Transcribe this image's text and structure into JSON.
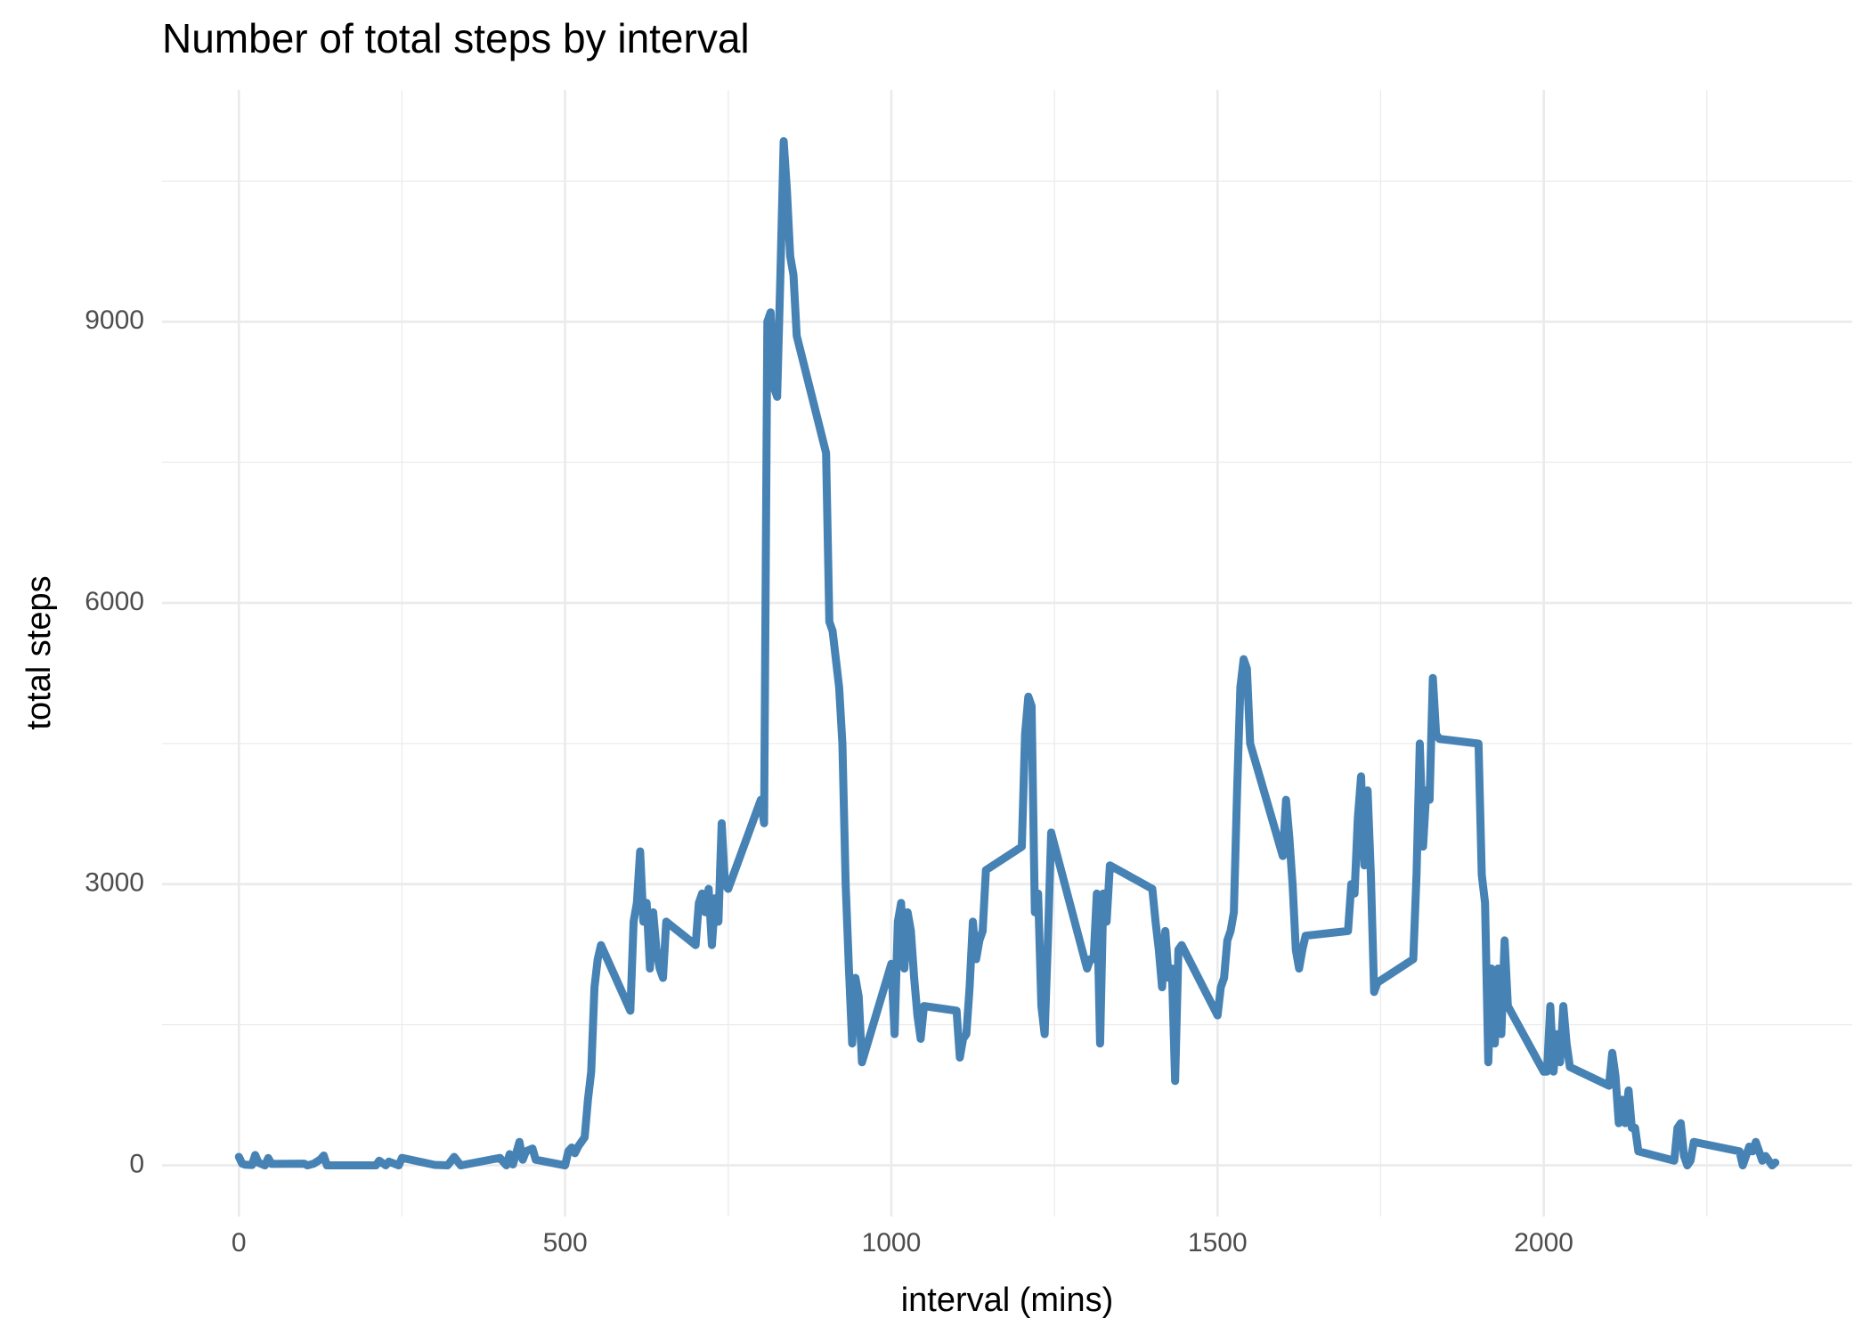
{
  "chart_data": {
    "type": "line",
    "title": "Number of total steps by interval",
    "x_label": "interval (mins)",
    "y_label": "total steps",
    "xlim": [
      -117.75,
      2472.75
    ],
    "ylim": [
      -546,
      11473
    ],
    "xticks": [
      0,
      500,
      1000,
      1500,
      2000
    ],
    "yticks": [
      0,
      3000,
      6000,
      9000
    ],
    "x_minor_grid": [
      250,
      750,
      1250,
      1750,
      2250
    ],
    "y_minor_grid": [
      1500,
      4500,
      7500,
      10500
    ],
    "grid": true,
    "x": [
      0,
      5,
      10,
      20,
      25,
      30,
      40,
      45,
      50,
      100,
      105,
      115,
      125,
      130,
      135,
      200,
      210,
      215,
      225,
      230,
      245,
      250,
      300,
      320,
      330,
      340,
      400,
      410,
      415,
      420,
      430,
      435,
      440,
      450,
      455,
      500,
      505,
      510,
      515,
      520,
      530,
      535,
      540,
      545,
      550,
      555,
      600,
      605,
      610,
      615,
      620,
      625,
      630,
      635,
      640,
      645,
      650,
      655,
      700,
      705,
      710,
      715,
      720,
      725,
      730,
      735,
      740,
      745,
      750,
      800,
      805,
      810,
      815,
      820,
      825,
      830,
      835,
      840,
      845,
      850,
      855,
      900,
      905,
      910,
      915,
      920,
      925,
      930,
      935,
      940,
      945,
      950,
      955,
      1000,
      1005,
      1010,
      1015,
      1020,
      1025,
      1030,
      1035,
      1040,
      1045,
      1050,
      1100,
      1105,
      1110,
      1115,
      1120,
      1125,
      1130,
      1135,
      1140,
      1145,
      1200,
      1205,
      1210,
      1215,
      1220,
      1225,
      1230,
      1235,
      1240,
      1245,
      1300,
      1305,
      1310,
      1315,
      1320,
      1325,
      1330,
      1335,
      1400,
      1405,
      1410,
      1415,
      1420,
      1425,
      1430,
      1435,
      1440,
      1445,
      1500,
      1505,
      1510,
      1515,
      1520,
      1525,
      1530,
      1535,
      1540,
      1545,
      1550,
      1600,
      1605,
      1610,
      1615,
      1620,
      1625,
      1630,
      1635,
      1700,
      1705,
      1710,
      1715,
      1720,
      1725,
      1730,
      1735,
      1740,
      1745,
      1800,
      1805,
      1810,
      1815,
      1820,
      1825,
      1830,
      1835,
      1840,
      1900,
      1905,
      1910,
      1915,
      1920,
      1925,
      1930,
      1935,
      1940,
      1945,
      2000,
      2005,
      2010,
      2015,
      2020,
      2025,
      2030,
      2035,
      2040,
      2100,
      2105,
      2110,
      2115,
      2120,
      2125,
      2130,
      2135,
      2140,
      2145,
      2200,
      2205,
      2210,
      2215,
      2220,
      2225,
      2230,
      2300,
      2305,
      2310,
      2315,
      2320,
      2325,
      2330,
      2335,
      2340,
      2345,
      2350,
      2355
    ],
    "series": [
      {
        "name": "total steps",
        "color": "#4682b4",
        "values": [
          91,
          18,
          7,
          4,
          111,
          28,
          0,
          78,
          16,
          18,
          0,
          19,
          64,
          105,
          0,
          0,
          0,
          50,
          0,
          40,
          0,
          80,
          5,
          0,
          90,
          0,
          80,
          0,
          120,
          10,
          250,
          60,
          150,
          180,
          60,
          0,
          150,
          190,
          130,
          200,
          300,
          700,
          1000,
          1900,
          2200,
          2350,
          1650,
          2600,
          2800,
          3350,
          2600,
          2800,
          2100,
          2700,
          2300,
          2100,
          2000,
          2600,
          2350,
          2800,
          2900,
          2700,
          2950,
          2350,
          2850,
          2600,
          3650,
          3000,
          2950,
          3900,
          3650,
          9000,
          9100,
          8300,
          8200,
          9500,
          10927,
          10400,
          9700,
          9500,
          8850,
          7600,
          5800,
          5700,
          5400,
          5100,
          4500,
          3000,
          2100,
          1300,
          2000,
          1800,
          1100,
          2150,
          1400,
          2600,
          2800,
          2100,
          2700,
          2500,
          2000,
          1600,
          1350,
          1700,
          1650,
          1150,
          1350,
          1400,
          1900,
          2600,
          2200,
          2400,
          2500,
          3150,
          3400,
          4600,
          5000,
          4900,
          2700,
          2900,
          1700,
          1400,
          2400,
          3550,
          2100,
          2200,
          2200,
          2900,
          1300,
          2900,
          2600,
          3200,
          2950,
          2600,
          2300,
          1900,
          2500,
          2000,
          2100,
          900,
          2300,
          2350,
          1600,
          1900,
          2000,
          2400,
          2500,
          2700,
          4000,
          5100,
          5400,
          5300,
          4500,
          3300,
          3900,
          3500,
          3000,
          2300,
          2100,
          2300,
          2450,
          2500,
          3000,
          2900,
          3700,
          4150,
          3200,
          4000,
          3100,
          1850,
          1950,
          2200,
          3100,
          4500,
          3400,
          4000,
          3900,
          5200,
          4600,
          4550,
          4500,
          3100,
          2800,
          1100,
          2100,
          1300,
          2100,
          1400,
          2400,
          1700,
          1000,
          1000,
          1700,
          1000,
          1400,
          1100,
          1700,
          1300,
          1050,
          850,
          1200,
          950,
          450,
          700,
          450,
          800,
          400,
          400,
          150,
          50,
          400,
          450,
          100,
          0,
          50,
          250,
          150,
          0,
          100,
          200,
          150,
          250,
          150,
          50,
          100,
          50,
          0,
          30
        ]
      }
    ]
  }
}
